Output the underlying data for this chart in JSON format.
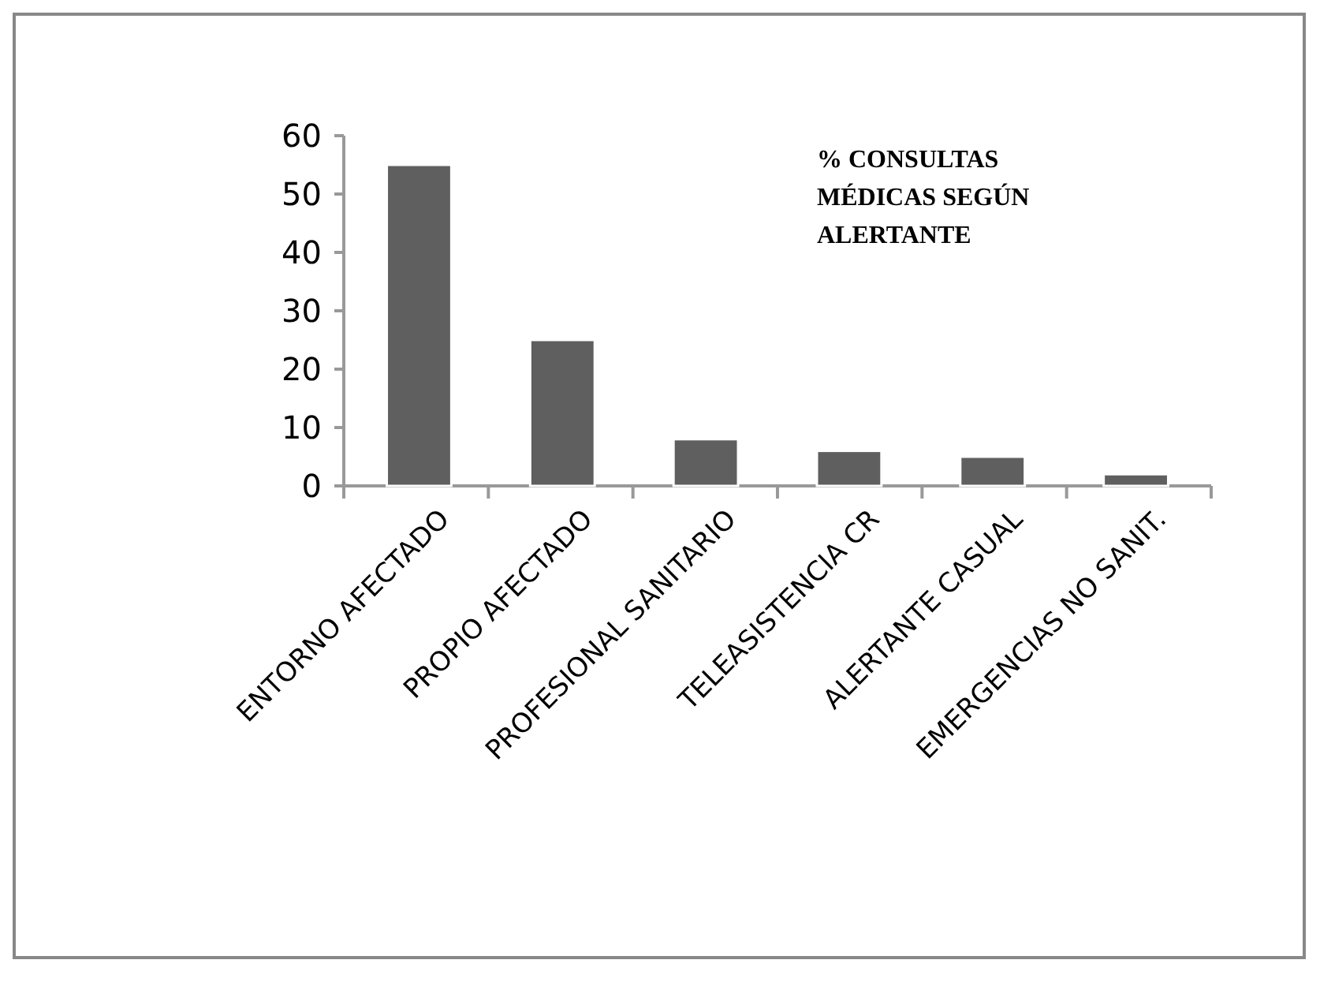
{
  "chart_data": {
    "type": "bar",
    "title": "% CONSULTAS MÉDICAS SEGÚN ALERTANTE",
    "categories": [
      "ENTORNO AFECTADO",
      "PROPIO AFECTADO",
      "PROFESIONAL SANITARIO",
      "TELEASISTENCIA CR",
      "ALERTANTE CASUAL",
      "EMERGENCIAS NO SANIT."
    ],
    "values": [
      55,
      25,
      8,
      6,
      5,
      2
    ],
    "color": "#5f5f5f",
    "ylim": [
      0,
      60
    ],
    "yticks": [
      0,
      10,
      20,
      30,
      40,
      50,
      60
    ],
    "grid": false
  }
}
